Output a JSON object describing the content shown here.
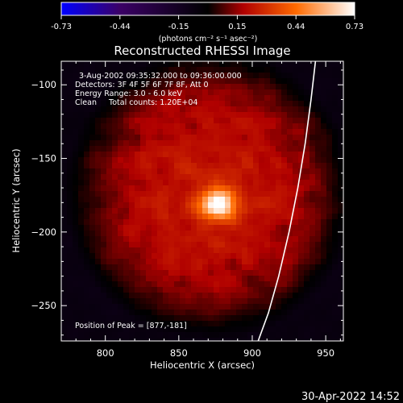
{
  "chart_data": {
    "type": "heatmap",
    "title": "Reconstructed RHESSI Image",
    "colorbar": {
      "min": -0.73,
      "max": 0.73,
      "ticks": [
        "-0.73",
        "-0.44",
        "-0.15",
        "0.15",
        "0.44",
        "0.73"
      ],
      "unit_label": "(photons cm⁻² s⁻¹ asec⁻²)",
      "colors": [
        "#0000ff",
        "#3b0066",
        "#000000",
        "#b00000",
        "#ff6a00",
        "#ffffff"
      ]
    },
    "annotations": [
      "3-Aug-2002 09:35:32.000 to 09:36:00.000",
      "Detectors: 3F 4F 5F 6F 7F 8F, Att 0",
      "Energy Range: 3.0 - 6.0 keV",
      "Clean     Total counts: 1.20E+04"
    ],
    "peak_label": "Position of Peak = [877,-181]",
    "peak": {
      "x": 877,
      "y": -181,
      "value": 0.73
    },
    "xlabel": "Heliocentric X (arcsec)",
    "ylabel": "Heliocentric Y (arcsec)",
    "xlim": [
      770,
      962
    ],
    "ylim": [
      -274,
      -84
    ],
    "x_ticks": [
      800,
      850,
      900,
      950
    ],
    "y_ticks": [
      -100,
      -150,
      -200,
      -250
    ],
    "x_tick_labels": [
      "800",
      "850",
      "900",
      "950"
    ],
    "y_tick_labels": [
      "−100",
      "−150",
      "−200",
      "−250"
    ],
    "limb_curve": {
      "x": [
        943,
        940,
        936,
        931,
        925,
        918,
        911,
        904
      ],
      "y": [
        -84,
        -110,
        -140,
        -170,
        -200,
        -230,
        -255,
        -274
      ]
    },
    "source": {
      "center": [
        877,
        -181
      ],
      "sigma": [
        9,
        7
      ]
    },
    "background_level": 0.22
  },
  "footer": {
    "timestamp": "30-Apr-2022 14:52"
  }
}
